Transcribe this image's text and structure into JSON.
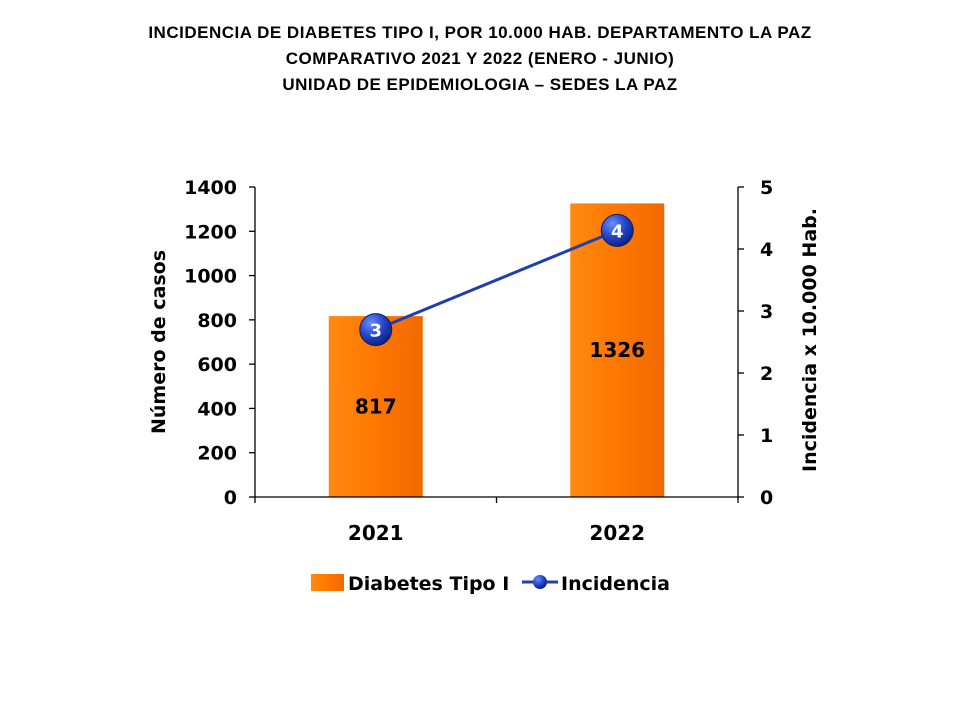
{
  "title": {
    "line1": "INCIDENCIA  DE  DIABETES  TIPO  I,  POR  10.000  HAB.  DEPARTAMENTO  LA  PAZ",
    "line2": "COMPARATIVO  2021  Y  2022  (ENERO  -  JUNIO)",
    "line3": "UNIDAD DE EPIDEMIOLOGIA – SEDES LA PAZ"
  },
  "chart_data": {
    "type": "bar",
    "categories": [
      "2021",
      "2022"
    ],
    "series": [
      {
        "name": "Diabetes Tipo I",
        "type": "bar",
        "axis": "left",
        "values": [
          817,
          1326
        ],
        "labels": [
          "817",
          "1326"
        ],
        "color": "#FF7F00"
      },
      {
        "name": "Incidencia",
        "type": "line",
        "axis": "right",
        "values": [
          2.7,
          4.3
        ],
        "labels": [
          "3",
          "4"
        ],
        "color": "#1F3FB0"
      }
    ],
    "ylabel": "Número de casos",
    "ylim": [
      0,
      1400
    ],
    "yticks": [
      "0",
      "200",
      "400",
      "600",
      "800",
      "1000",
      "1200",
      "1400"
    ],
    "y2label": "Incidencia x 10.000 Hab.",
    "y2lim": [
      0,
      5
    ],
    "y2ticks": [
      "0",
      "1",
      "2",
      "3",
      "4",
      "5"
    ],
    "grid": false,
    "legend_position": "bottom"
  }
}
